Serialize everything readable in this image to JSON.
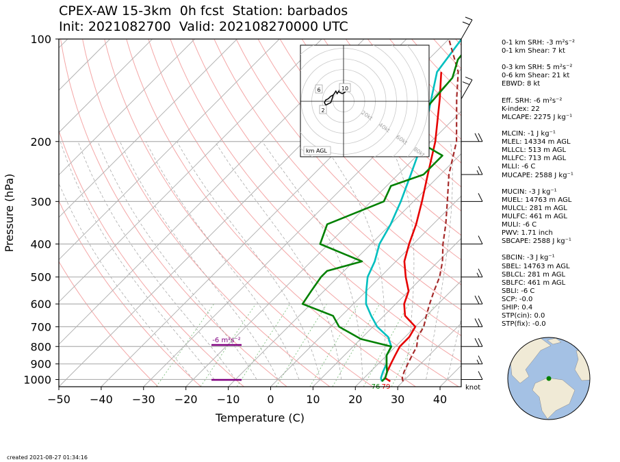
{
  "header": {
    "title_line1": "CPEX-AW 15-3km  0h fcst  Station: barbados",
    "title_line2": "Init: 2021082700  Valid: 202108270000 UTC"
  },
  "footer": {
    "created": "created 2021-08-27 01:34:16"
  },
  "stats": [
    "0-1 km SRH: -3 m²s⁻²",
    "0-1 km Shear: 7 kt",
    "",
    "0-3 km SRH: 5 m²s⁻²",
    "0-6 km Shear: 21 kt",
    "EBWD: 8 kt",
    "",
    "Eff. SRH: -6 m²s⁻²",
    "K-index: 22",
    "MLCAPE: 2275 J kg⁻¹",
    "",
    "MLCIN: -1 J kg⁻¹",
    "MLEL: 14334 m AGL",
    "MLLCL: 513 m AGL",
    "MLLFC: 713 m AGL",
    "MLLI: -6 C",
    "MUCAPE: 2588 J kg⁻¹",
    "",
    "MUCIN: -3 J kg⁻¹",
    "MUEL: 14763 m AGL",
    "MULCL: 281 m AGL",
    "MULFC: 461 m AGL",
    "MULI: -6 C",
    "PWV: 1.71 inch",
    "SBCAPE: 2588 J kg⁻¹",
    "",
    "SBCIN: -3 J kg⁻¹",
    "SBEL: 14763 m AGL",
    "SBLCL: 281 m AGL",
    "SBLFC: 461 m AGL",
    "SBLI: -6 C",
    "SCP: -0.0",
    "SHIP: 0.4",
    "STP(cin): 0.0",
    "STP(fix): -0.0"
  ],
  "chart_data": [
    {
      "type": "line",
      "kind": "skew-T log-p",
      "xlabel": "Temperature (C)",
      "ylabel": "Pressure (hPa)",
      "xlim": [
        -50,
        45
      ],
      "ylim": [
        1050,
        100
      ],
      "y_scale": "log",
      "x_ticks": [
        -50,
        -40,
        -30,
        -20,
        -10,
        0,
        10,
        20,
        30,
        40
      ],
      "y_ticks": [
        1000,
        900,
        800,
        700,
        600,
        500,
        400,
        300,
        200,
        100
      ],
      "wind_units_label": "knot",
      "surface_labels": {
        "dewpoint": "76",
        "temperature": "79"
      },
      "srh_label": "-6 m²s⁻²",
      "series": [
        {
          "role": "temperature",
          "color": "#e60000",
          "points": [
            [
              1013,
              27
            ],
            [
              990,
              25
            ],
            [
              950,
              24
            ],
            [
              900,
              23
            ],
            [
              850,
              22
            ],
            [
              800,
              21
            ],
            [
              750,
              21
            ],
            [
              700,
              20
            ],
            [
              650,
              15
            ],
            [
              600,
              12
            ],
            [
              550,
              10
            ],
            [
              500,
              6
            ],
            [
              450,
              2
            ],
            [
              400,
              -1
            ],
            [
              350,
              -4
            ],
            [
              300,
              -8
            ],
            [
              250,
              -13
            ],
            [
              200,
              -19
            ],
            [
              150,
              -28
            ],
            [
              125,
              -34
            ]
          ]
        },
        {
          "role": "dewpoint",
          "color": "#00bfbf",
          "points": [
            [
              1013,
              25
            ],
            [
              990,
              24
            ],
            [
              950,
              23
            ],
            [
              900,
              22
            ],
            [
              850,
              20
            ],
            [
              800,
              19
            ],
            [
              750,
              16
            ],
            [
              700,
              11
            ],
            [
              650,
              7
            ],
            [
              600,
              3
            ],
            [
              550,
              0
            ],
            [
              500,
              -3
            ],
            [
              450,
              -5
            ],
            [
              400,
              -8
            ],
            [
              350,
              -10
            ],
            [
              300,
              -13
            ],
            [
              250,
              -17
            ],
            [
              200,
              -22
            ],
            [
              150,
              -30
            ],
            [
              125,
              -35
            ],
            [
              100,
              -37
            ]
          ]
        },
        {
          "role": "parcel",
          "color": "#a52a2a",
          "points": [
            [
              1013,
              30
            ],
            [
              990,
              29
            ],
            [
              950,
              28
            ],
            [
              900,
              27
            ],
            [
              850,
              26
            ],
            [
              800,
              25
            ],
            [
              750,
              23
            ],
            [
              700,
              22
            ],
            [
              650,
              20
            ],
            [
              600,
              18
            ],
            [
              550,
              16
            ],
            [
              500,
              14
            ],
            [
              450,
              11
            ],
            [
              400,
              7
            ],
            [
              350,
              3
            ],
            [
              300,
              -2
            ],
            [
              250,
              -8
            ],
            [
              200,
              -14
            ],
            [
              150,
              -24
            ],
            [
              125,
              -30
            ],
            [
              100,
              -40
            ]
          ]
        },
        {
          "role": "wet-bulb",
          "color": "#008000",
          "points": [
            [
              1013,
              25
            ],
            [
              990,
              25
            ],
            [
              950,
              24
            ],
            [
              900,
              22
            ],
            [
              850,
              20
            ],
            [
              800,
              19
            ],
            [
              760,
              10
            ],
            [
              700,
              2
            ],
            [
              650,
              -2
            ],
            [
              600,
              -12
            ],
            [
              550,
              -13
            ],
            [
              500,
              -14
            ],
            [
              480,
              -14
            ],
            [
              450,
              -8
            ],
            [
              400,
              -22
            ],
            [
              350,
              -25
            ],
            [
              300,
              -17
            ],
            [
              270,
              -19
            ],
            [
              250,
              -14
            ],
            [
              220,
              -14
            ],
            [
              200,
              -23
            ],
            [
              160,
              -29
            ],
            [
              130,
              -30
            ],
            [
              115,
              -33
            ],
            [
              100,
              -34
            ]
          ]
        }
      ],
      "wind_barbs": [
        {
          "p": 1000,
          "speed_kt": 10,
          "dir": "east"
        },
        {
          "p": 900,
          "speed_kt": 15,
          "dir": "east"
        },
        {
          "p": 800,
          "speed_kt": 20,
          "dir": "east"
        },
        {
          "p": 700,
          "speed_kt": 20,
          "dir": "east"
        },
        {
          "p": 600,
          "speed_kt": 20,
          "dir": "east"
        },
        {
          "p": 500,
          "speed_kt": 15,
          "dir": "east"
        },
        {
          "p": 400,
          "speed_kt": 10,
          "dir": "east"
        },
        {
          "p": 300,
          "speed_kt": 10,
          "dir": "east"
        },
        {
          "p": 250,
          "speed_kt": 15,
          "dir": "east"
        },
        {
          "p": 200,
          "speed_kt": 20,
          "dir": "east"
        },
        {
          "p": 150,
          "speed_kt": 25,
          "dir": "north"
        },
        {
          "p": 100,
          "speed_kt": 20,
          "dir": "north"
        }
      ]
    },
    {
      "type": "line",
      "kind": "hodograph",
      "ring_labels": [
        "20kt",
        "40kt",
        "60kt",
        "80kt"
      ],
      "height_labels": [
        "6",
        "10",
        "2"
      ],
      "legend": "km AGL",
      "series": [
        {
          "role": "hodograph",
          "color": "#000000",
          "points": [
            [
              -8,
              5
            ],
            [
              -10,
              4
            ],
            [
              -12,
              2
            ],
            [
              -14,
              1
            ],
            [
              -15,
              -1
            ],
            [
              -14,
              -3
            ],
            [
              -12,
              -2
            ],
            [
              -10,
              -1
            ],
            [
              -9,
              2
            ],
            [
              -8,
              5
            ],
            [
              -6,
              8
            ],
            [
              -5,
              6
            ],
            [
              -3,
              9
            ],
            [
              0,
              9
            ],
            [
              3,
              10
            ],
            [
              1,
              7
            ],
            [
              -1,
              6
            ],
            [
              -3,
              7
            ],
            [
              -4,
              8
            ]
          ]
        }
      ]
    },
    {
      "type": "map",
      "kind": "globe-inset",
      "marker": "barbados",
      "colors": {
        "ocean": "#a4c1e4",
        "land": "#f0ead6",
        "marker": "#008000"
      }
    }
  ]
}
